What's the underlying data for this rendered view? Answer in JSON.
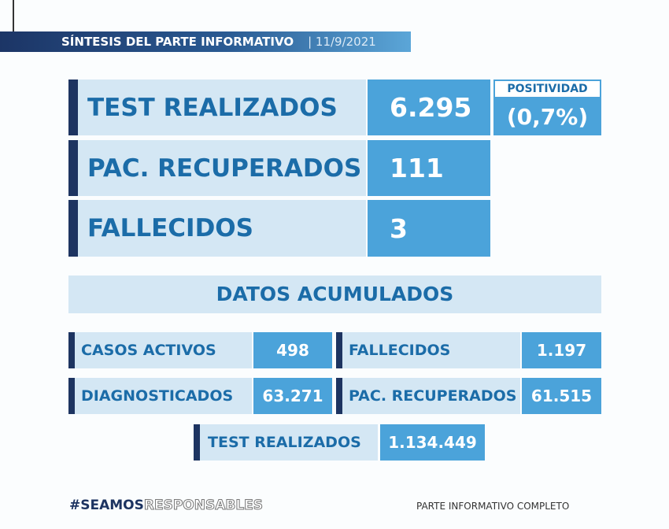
{
  "header": {
    "title": "SÍNTESIS DEL PARTE INFORMATIVO",
    "date": "| 11/9/2021"
  },
  "daily": [
    {
      "label": "TEST REALIZADOS",
      "value": "6.295"
    },
    {
      "label": "PAC. RECUPERADOS",
      "value": "111"
    },
    {
      "label": "FALLECIDOS",
      "value": "3"
    }
  ],
  "positividad": {
    "label": "POSITIVIDAD",
    "value": "(0,7%)"
  },
  "acumulados": {
    "title": "DATOS ACUMULADOS",
    "items": [
      {
        "label": "CASOS ACTIVOS",
        "value": "498"
      },
      {
        "label": "FALLECIDOS",
        "value": "1.197"
      },
      {
        "label": "DIAGNOSTICADOS",
        "value": "63.271"
      },
      {
        "label": "PAC. RECUPERADOS",
        "value": "61.515"
      },
      {
        "label": "TEST REALIZADOS",
        "value": "1.134.449"
      }
    ]
  },
  "footer": {
    "hashtag_bold": "#SEAMOS",
    "hashtag_outline": "RESPONSABLES",
    "link": "PARTE INFORMATIVO COMPLETO"
  },
  "colors": {
    "navy": "#1d3461",
    "light": "#d4e7f4",
    "accent": "#4ba3da",
    "text": "#1b6ca8"
  }
}
